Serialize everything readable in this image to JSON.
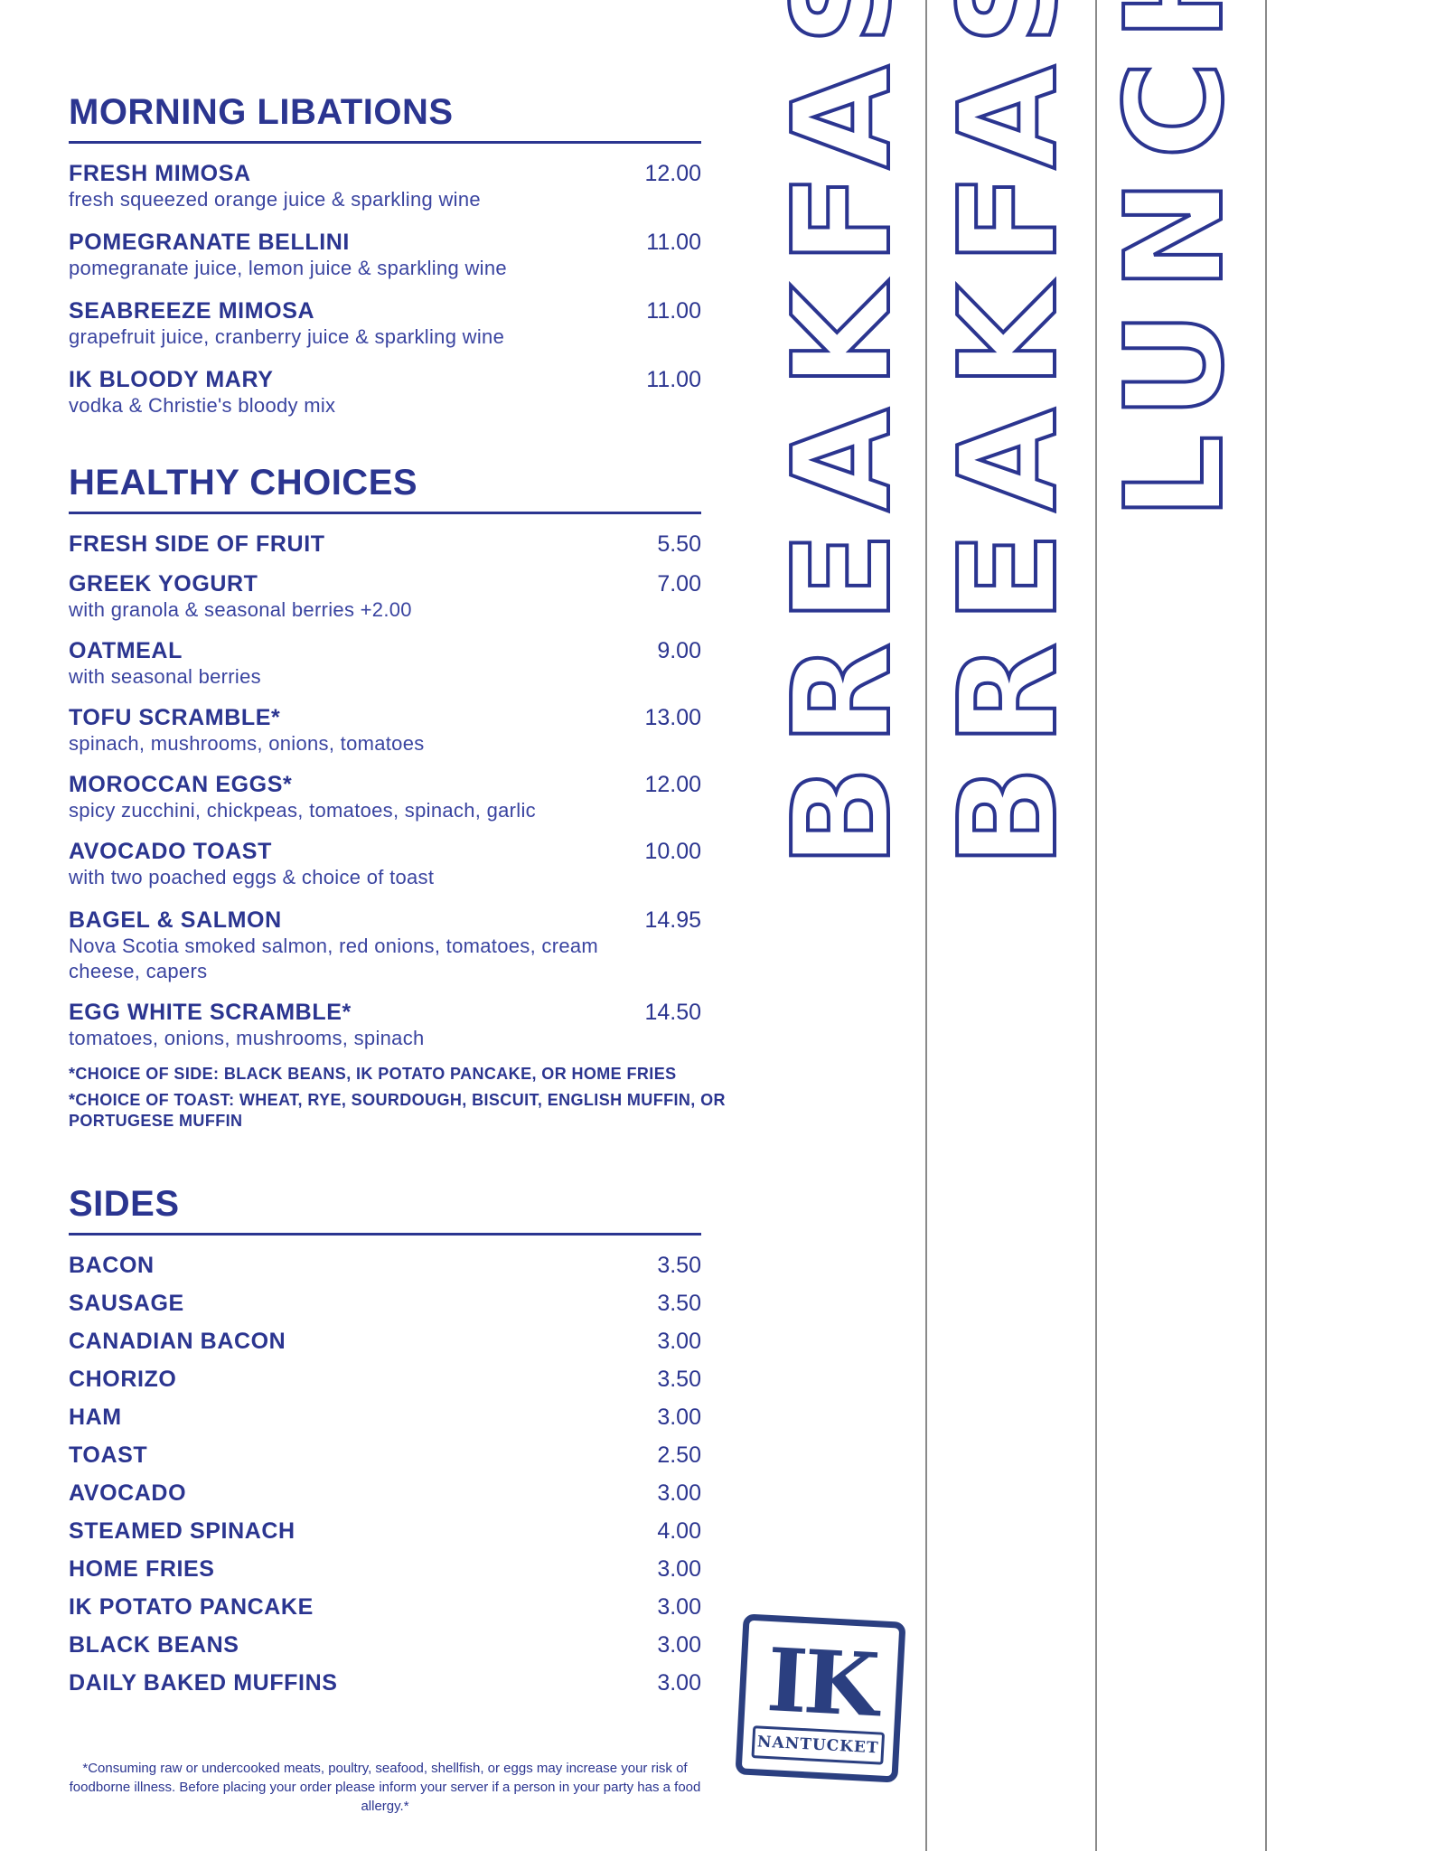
{
  "morning_libations": {
    "title": "MORNING LIBATIONS",
    "items": [
      {
        "name": "FRESH MIMOSA",
        "price": "12.00",
        "desc": "fresh squeezed orange juice & sparkling wine"
      },
      {
        "name": "POMEGRANATE BELLINI",
        "price": "11.00",
        "desc": "pomegranate juice, lemon juice & sparkling wine"
      },
      {
        "name": "SEABREEZE MIMOSA",
        "price": "11.00",
        "desc": "grapefruit juice, cranberry juice & sparkling wine"
      },
      {
        "name": "IK BLOODY MARY",
        "price": "11.00",
        "desc": "vodka & Christie's bloody mix"
      }
    ]
  },
  "healthy_choices": {
    "title": "HEALTHY CHOICES",
    "items": [
      {
        "name": "FRESH SIDE OF FRUIT",
        "price": "5.50",
        "desc": ""
      },
      {
        "name": "GREEK YOGURT",
        "price": "7.00",
        "desc": "with granola & seasonal berries +2.00"
      },
      {
        "name": "OATMEAL",
        "price": "9.00",
        "desc": "with seasonal berries"
      },
      {
        "name": "TOFU SCRAMBLE*",
        "price": "13.00",
        "desc": "spinach, mushrooms, onions, tomatoes"
      },
      {
        "name": "MOROCCAN EGGS*",
        "price": "12.00",
        "desc": "spicy zucchini, chickpeas, tomatoes, spinach, garlic"
      },
      {
        "name": "AVOCADO TOAST",
        "price": "10.00",
        "desc": "with two poached eggs & choice of toast"
      },
      {
        "name": "BAGEL & SALMON",
        "price": "14.95",
        "desc": "Nova Scotia smoked salmon, red onions, tomatoes, cream cheese, capers"
      },
      {
        "name": "EGG WHITE SCRAMBLE*",
        "price": "14.50",
        "desc": "tomatoes, onions, mushrooms, spinach"
      }
    ],
    "note_side": "*CHOICE OF SIDE: BLACK BEANS, IK POTATO PANCAKE, OR HOME FRIES",
    "note_toast": "*CHOICE OF TOAST: WHEAT, RYE, SOURDOUGH, BISCUIT, ENGLISH MUFFIN, OR PORTUGESE MUFFIN"
  },
  "sides": {
    "title": "SIDES",
    "items": [
      {
        "name": "BACON",
        "price": "3.50"
      },
      {
        "name": "SAUSAGE",
        "price": "3.50"
      },
      {
        "name": "CANADIAN BACON",
        "price": "3.00"
      },
      {
        "name": "CHORIZO",
        "price": "3.50"
      },
      {
        "name": "HAM",
        "price": "3.00"
      },
      {
        "name": "TOAST",
        "price": "2.50"
      },
      {
        "name": "AVOCADO",
        "price": "3.00"
      },
      {
        "name": "STEAMED SPINACH",
        "price": "4.00"
      },
      {
        "name": "HOME FRIES",
        "price": "3.00"
      },
      {
        "name": "IK POTATO PANCAKE",
        "price": "3.00"
      },
      {
        "name": "BLACK BEANS",
        "price": "3.00"
      },
      {
        "name": "DAILY BAKED MUFFINS",
        "price": "3.00"
      }
    ]
  },
  "disclaimer": "*Consuming raw or undercooked meats, poultry, seafood, shellfish, or eggs may increase your risk of foodborne illness. Before placing your order please inform your server if a person in your party has a food allergy.*",
  "tabs": [
    "BREAKFAST",
    "BREAKFAST",
    "LUNCH"
  ],
  "logo": {
    "letters": "IK",
    "band": "NANTUCKET"
  },
  "colors": {
    "primary": "#2b3590",
    "divider": "#8a8a8a"
  }
}
